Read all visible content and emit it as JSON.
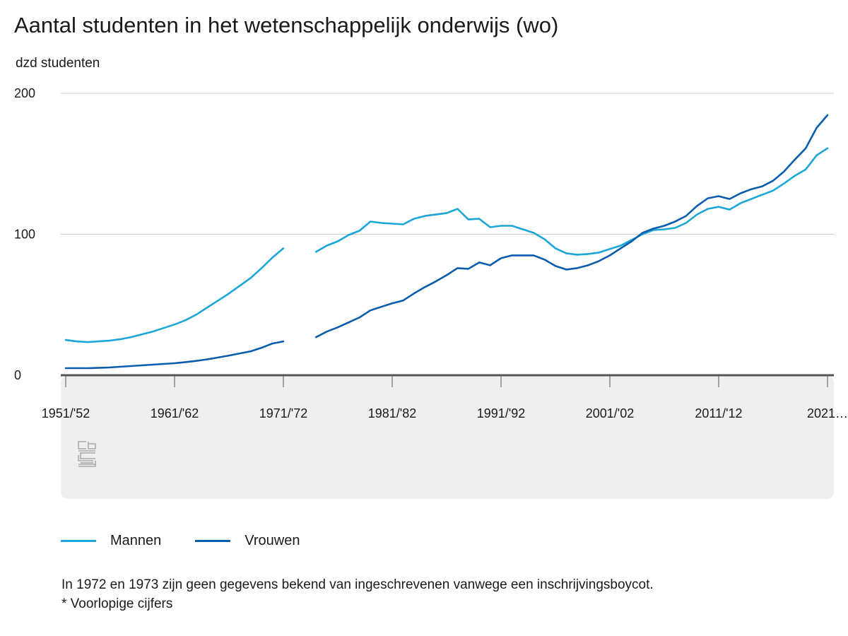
{
  "chart_data": {
    "type": "line",
    "title": "Aantal studenten in het wetenschappelijk onderwijs (wo)",
    "ylabel": "dzd studenten",
    "xlabel": "",
    "ylim": [
      0,
      200
    ],
    "yticks": [
      0,
      100,
      200
    ],
    "x_tick_labels": [
      "1951/'52",
      "1961/'62",
      "1971/'72",
      "1981/'82",
      "1991/'92",
      "2001/'02",
      "2011/'12",
      "2021…"
    ],
    "x_start_year": 1951,
    "x_end_year": 2021,
    "gap_years": [
      1972,
      1973
    ],
    "series": [
      {
        "name": "Mannen",
        "color": "#1ba6d8",
        "values": [
          25,
          24,
          23.5,
          24,
          24.5,
          25.5,
          27,
          29,
          31,
          33.5,
          36,
          39,
          43,
          48,
          53,
          58,
          63.5,
          69,
          76,
          83.5,
          90,
          null,
          null,
          87.5,
          92,
          95,
          99.5,
          102.5,
          109,
          108,
          107.5,
          107,
          111,
          113,
          114,
          115,
          118,
          110.5,
          111,
          105,
          106,
          106,
          103.5,
          101,
          96.5,
          90,
          86.5,
          85.5,
          86,
          87,
          89.5,
          92,
          96,
          100,
          103,
          103.5,
          104.5,
          108,
          114,
          118,
          119.5,
          117.5,
          122,
          125,
          128,
          131,
          136,
          141.5,
          146,
          156,
          161
        ]
      },
      {
        "name": "Vrouwen",
        "color": "#0a5cad",
        "values": [
          5,
          5,
          5,
          5.2,
          5.5,
          6,
          6.5,
          7,
          7.5,
          8,
          8.5,
          9.3,
          10.2,
          11.3,
          12.6,
          14,
          15.5,
          17,
          19.5,
          22.5,
          24,
          null,
          null,
          27,
          31,
          34,
          37.5,
          41,
          46,
          48.5,
          51,
          53,
          58,
          62.5,
          66.5,
          71,
          76,
          75.5,
          80,
          78,
          83,
          85,
          85,
          85,
          82,
          77.5,
          75,
          76,
          78,
          81,
          85,
          90,
          95,
          101,
          104,
          106,
          109,
          113,
          120,
          125.5,
          127,
          125,
          129,
          132,
          134,
          138,
          144.5,
          153,
          161,
          175.5,
          184.5
        ]
      }
    ]
  },
  "legend": {
    "items": [
      {
        "label": "Mannen",
        "color": "#1ba6d8"
      },
      {
        "label": "Vrouwen",
        "color": "#0a5cad"
      }
    ]
  },
  "notes": {
    "line1": "In 1972 en 1973 zijn geen gegevens bekend van ingeschrevenen vanwege een inschrijvingsboycot.",
    "line2": "* Voorlopige cijfers"
  },
  "logo": {
    "icon": "cbs-logo-icon",
    "text": "cbs"
  }
}
